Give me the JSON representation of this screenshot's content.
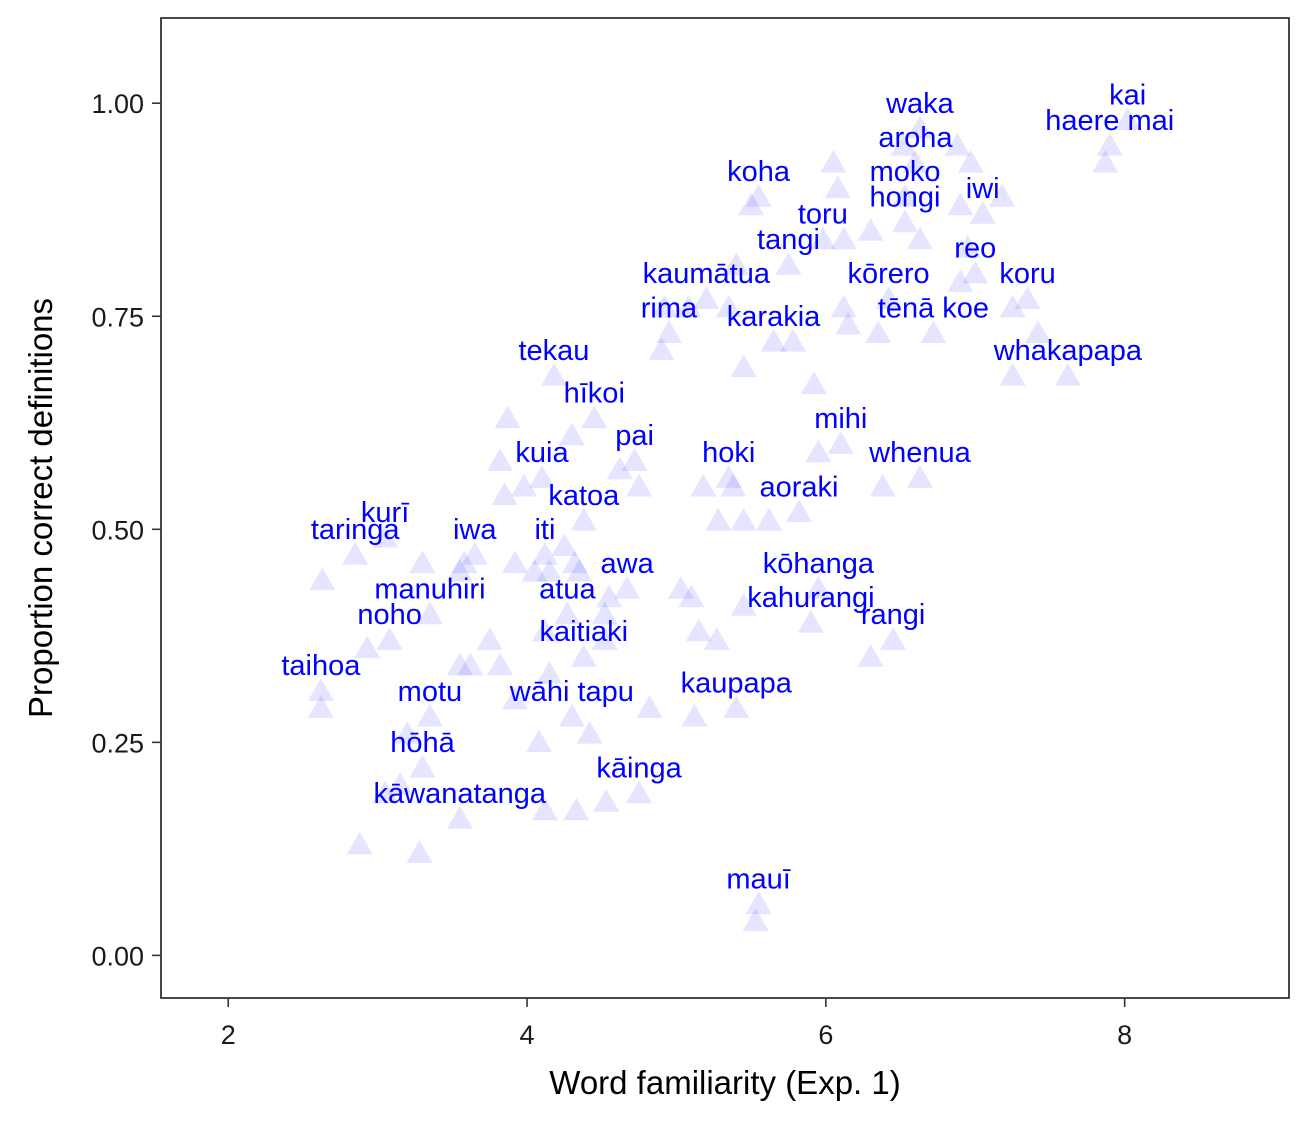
{
  "chart_data": {
    "type": "scatter",
    "title": "",
    "xlabel": "Word familiarity (Exp. 1)",
    "ylabel": "Proportion correct definitions",
    "xlim": [
      1.55,
      9.1
    ],
    "ylim": [
      -0.05,
      1.1
    ],
    "x_ticks": [
      2,
      4,
      6,
      8
    ],
    "x_tick_labels": [
      "2",
      "4",
      "6",
      "8"
    ],
    "y_ticks": [
      0,
      0.25,
      0.5,
      0.75,
      1.0
    ],
    "y_tick_labels": [
      "0.00",
      "0.25",
      "0.50",
      "0.75",
      "1.00"
    ],
    "grid": false,
    "marker": "triangle",
    "marker_color": "#0000ff",
    "marker_opacity": 0.1,
    "label_color": "#0000ff",
    "labelled_points": [
      {
        "label": "kai",
        "x": 8.02,
        "y": 0.98
      },
      {
        "label": "haere mai",
        "x": 7.9,
        "y": 0.95
      },
      {
        "label": "waka",
        "x": 6.63,
        "y": 0.97
      },
      {
        "label": "aroha",
        "x": 6.6,
        "y": 0.93
      },
      {
        "label": "koha",
        "x": 5.55,
        "y": 0.89
      },
      {
        "label": "moko",
        "x": 6.53,
        "y": 0.89
      },
      {
        "label": "hongi",
        "x": 6.53,
        "y": 0.86
      },
      {
        "label": "iwi",
        "x": 7.05,
        "y": 0.87
      },
      {
        "label": "toru",
        "x": 5.98,
        "y": 0.84
      },
      {
        "label": "tangi",
        "x": 5.75,
        "y": 0.81
      },
      {
        "label": "reo",
        "x": 7.0,
        "y": 0.8
      },
      {
        "label": "kaumātua",
        "x": 5.2,
        "y": 0.77
      },
      {
        "label": "kōrero",
        "x": 6.42,
        "y": 0.77
      },
      {
        "label": "koru",
        "x": 7.35,
        "y": 0.77
      },
      {
        "label": "tēnā koe",
        "x": 6.72,
        "y": 0.73
      },
      {
        "label": "rima",
        "x": 4.95,
        "y": 0.73
      },
      {
        "label": "karakia",
        "x": 5.65,
        "y": 0.72
      },
      {
        "label": "whakapapa",
        "x": 7.62,
        "y": 0.68
      },
      {
        "label": "tekau",
        "x": 4.18,
        "y": 0.68
      },
      {
        "label": "hīkoi",
        "x": 4.45,
        "y": 0.63
      },
      {
        "label": "mihi",
        "x": 6.1,
        "y": 0.6
      },
      {
        "label": "pai",
        "x": 4.72,
        "y": 0.58
      },
      {
        "label": "kuia",
        "x": 4.1,
        "y": 0.56
      },
      {
        "label": "whenua",
        "x": 6.63,
        "y": 0.56
      },
      {
        "label": "hoki",
        "x": 5.35,
        "y": 0.56
      },
      {
        "label": "aoraki",
        "x": 5.82,
        "y": 0.52
      },
      {
        "label": "katoa",
        "x": 4.38,
        "y": 0.51
      },
      {
        "label": "kurī",
        "x": 3.05,
        "y": 0.49
      },
      {
        "label": "taringa",
        "x": 2.85,
        "y": 0.47
      },
      {
        "label": "iwa",
        "x": 3.65,
        "y": 0.47
      },
      {
        "label": "iti",
        "x": 4.12,
        "y": 0.47
      },
      {
        "label": "awa",
        "x": 4.67,
        "y": 0.43
      },
      {
        "label": "kōhanga",
        "x": 5.95,
        "y": 0.43
      },
      {
        "label": "manuhiri",
        "x": 3.35,
        "y": 0.4
      },
      {
        "label": "atua",
        "x": 4.27,
        "y": 0.4
      },
      {
        "label": "kahurangi",
        "x": 5.9,
        "y": 0.39
      },
      {
        "label": "noho",
        "x": 3.08,
        "y": 0.37
      },
      {
        "label": "rangi",
        "x": 6.45,
        "y": 0.37
      },
      {
        "label": "kaitiaki",
        "x": 4.38,
        "y": 0.35
      },
      {
        "label": "taihoa",
        "x": 2.62,
        "y": 0.31
      },
      {
        "label": "kaupapa",
        "x": 5.4,
        "y": 0.29
      },
      {
        "label": "motu",
        "x": 3.35,
        "y": 0.28
      },
      {
        "label": "wāhi tapu",
        "x": 4.3,
        "y": 0.28
      },
      {
        "label": "hōhā",
        "x": 3.3,
        "y": 0.22
      },
      {
        "label": "kāinga",
        "x": 4.75,
        "y": 0.19
      },
      {
        "label": "kāwanatanga",
        "x": 3.55,
        "y": 0.16
      },
      {
        "label": "mauī",
        "x": 5.55,
        "y": 0.06
      }
    ],
    "unlabelled_points": [
      {
        "x": 7.87,
        "y": 0.93
      },
      {
        "x": 6.88,
        "y": 0.95
      },
      {
        "x": 6.52,
        "y": 0.95
      },
      {
        "x": 6.97,
        "y": 0.93
      },
      {
        "x": 6.05,
        "y": 0.93
      },
      {
        "x": 6.08,
        "y": 0.9
      },
      {
        "x": 5.5,
        "y": 0.88
      },
      {
        "x": 6.9,
        "y": 0.88
      },
      {
        "x": 7.18,
        "y": 0.89
      },
      {
        "x": 6.3,
        "y": 0.85
      },
      {
        "x": 6.12,
        "y": 0.84
      },
      {
        "x": 6.63,
        "y": 0.84
      },
      {
        "x": 5.4,
        "y": 0.81
      },
      {
        "x": 6.95,
        "y": 0.83
      },
      {
        "x": 6.9,
        "y": 0.79
      },
      {
        "x": 4.92,
        "y": 0.76
      },
      {
        "x": 5.08,
        "y": 0.76
      },
      {
        "x": 5.35,
        "y": 0.76
      },
      {
        "x": 6.12,
        "y": 0.76
      },
      {
        "x": 6.15,
        "y": 0.74
      },
      {
        "x": 7.25,
        "y": 0.76
      },
      {
        "x": 7.42,
        "y": 0.73
      },
      {
        "x": 6.35,
        "y": 0.73
      },
      {
        "x": 5.78,
        "y": 0.72
      },
      {
        "x": 4.9,
        "y": 0.71
      },
      {
        "x": 5.45,
        "y": 0.69
      },
      {
        "x": 7.25,
        "y": 0.68
      },
      {
        "x": 5.92,
        "y": 0.67
      },
      {
        "x": 3.87,
        "y": 0.63
      },
      {
        "x": 4.3,
        "y": 0.61
      },
      {
        "x": 5.95,
        "y": 0.59
      },
      {
        "x": 3.82,
        "y": 0.58
      },
      {
        "x": 4.62,
        "y": 0.57
      },
      {
        "x": 3.98,
        "y": 0.55
      },
      {
        "x": 3.85,
        "y": 0.54
      },
      {
        "x": 4.75,
        "y": 0.55
      },
      {
        "x": 5.18,
        "y": 0.55
      },
      {
        "x": 5.38,
        "y": 0.55
      },
      {
        "x": 6.38,
        "y": 0.55
      },
      {
        "x": 5.28,
        "y": 0.51
      },
      {
        "x": 5.45,
        "y": 0.51
      },
      {
        "x": 5.62,
        "y": 0.51
      },
      {
        "x": 4.25,
        "y": 0.48
      },
      {
        "x": 3.3,
        "y": 0.46
      },
      {
        "x": 3.58,
        "y": 0.46
      },
      {
        "x": 3.92,
        "y": 0.46
      },
      {
        "x": 4.32,
        "y": 0.46
      },
      {
        "x": 3.55,
        "y": 0.45
      },
      {
        "x": 4.05,
        "y": 0.45
      },
      {
        "x": 4.15,
        "y": 0.45
      },
      {
        "x": 4.35,
        "y": 0.45
      },
      {
        "x": 2.63,
        "y": 0.44
      },
      {
        "x": 5.03,
        "y": 0.43
      },
      {
        "x": 5.1,
        "y": 0.42
      },
      {
        "x": 4.55,
        "y": 0.42
      },
      {
        "x": 5.45,
        "y": 0.41
      },
      {
        "x": 4.52,
        "y": 0.4
      },
      {
        "x": 5.15,
        "y": 0.38
      },
      {
        "x": 4.12,
        "y": 0.38
      },
      {
        "x": 5.27,
        "y": 0.37
      },
      {
        "x": 4.52,
        "y": 0.37
      },
      {
        "x": 3.75,
        "y": 0.37
      },
      {
        "x": 2.93,
        "y": 0.36
      },
      {
        "x": 6.3,
        "y": 0.35
      },
      {
        "x": 3.55,
        "y": 0.34
      },
      {
        "x": 3.62,
        "y": 0.34
      },
      {
        "x": 3.82,
        "y": 0.34
      },
      {
        "x": 4.15,
        "y": 0.33
      },
      {
        "x": 2.62,
        "y": 0.29
      },
      {
        "x": 3.92,
        "y": 0.3
      },
      {
        "x": 4.82,
        "y": 0.29
      },
      {
        "x": 5.12,
        "y": 0.28
      },
      {
        "x": 3.2,
        "y": 0.26
      },
      {
        "x": 4.08,
        "y": 0.25
      },
      {
        "x": 4.42,
        "y": 0.26
      },
      {
        "x": 3.15,
        "y": 0.2
      },
      {
        "x": 3.05,
        "y": 0.19
      },
      {
        "x": 4.12,
        "y": 0.17
      },
      {
        "x": 4.33,
        "y": 0.17
      },
      {
        "x": 4.53,
        "y": 0.18
      },
      {
        "x": 2.88,
        "y": 0.13
      },
      {
        "x": 3.28,
        "y": 0.12
      },
      {
        "x": 5.53,
        "y": 0.04
      }
    ]
  }
}
